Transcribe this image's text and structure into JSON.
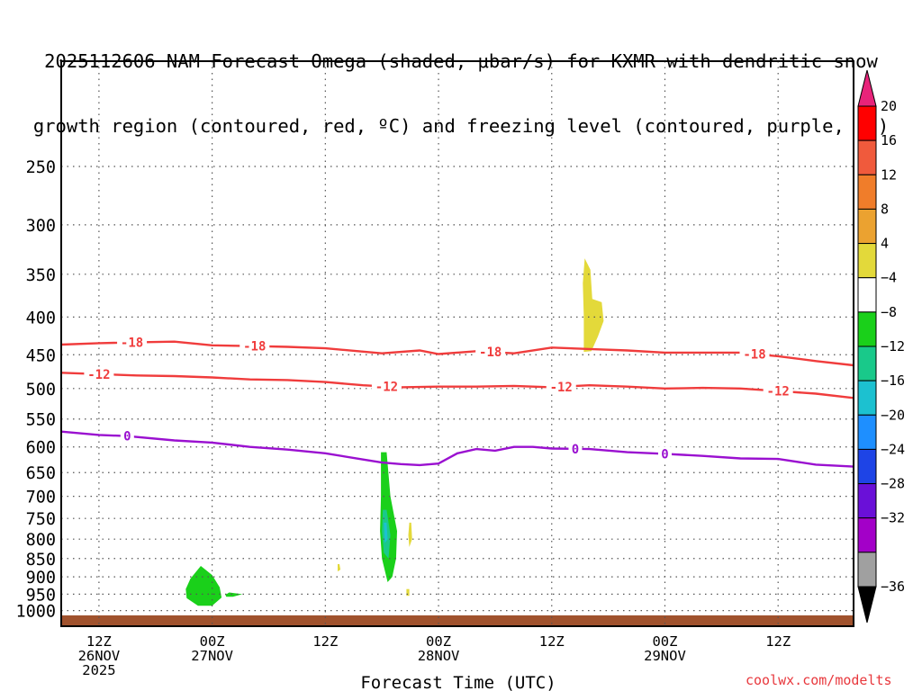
{
  "chart_data": {
    "type": "contour",
    "title_line1": "2025112606 NAM Forecast Omega (shaded, μbar/s) for KXMR with dendritic snow",
    "title_line2": "growth region (contoured, red, ºC) and freezing level (contoured, purple, ºC)",
    "xlabel": "Forecast Time (UTC)",
    "credit": "coolwx.com/modelts",
    "y_axis": {
      "scale": "log-pressure",
      "range": [
        1050,
        180
      ],
      "ticks": [
        250,
        300,
        350,
        400,
        450,
        500,
        550,
        600,
        650,
        700,
        750,
        800,
        850,
        900,
        950,
        1000
      ],
      "tick_labels": [
        "250",
        "300",
        "350",
        "400",
        "450",
        "500",
        "550",
        "600",
        "650",
        "700",
        "750",
        "800",
        "850",
        "900",
        "950",
        "1000"
      ]
    },
    "x_axis": {
      "range_hours": [
        -10,
        74
      ],
      "ticks_hours": [
        6,
        18,
        30,
        42,
        54,
        66
      ],
      "tick_labels": [
        [
          "12Z",
          "26NOV",
          "2025"
        ],
        [
          "00Z",
          "27NOV"
        ],
        [
          "12Z",
          ""
        ],
        [
          "00Z",
          "28NOV"
        ],
        [
          "12Z",
          ""
        ],
        [
          "00Z",
          "29NOV"
        ],
        [
          "12Z",
          ""
        ]
      ],
      "tick_hours_all": [
        -6,
        6,
        18,
        30,
        42,
        54,
        66
      ]
    },
    "grid": true,
    "colorbar": {
      "labels": [
        "20",
        "16",
        "12",
        "8",
        "4",
        "−4",
        "−8",
        "−12",
        "−16",
        "−20",
        "−24",
        "−28",
        "−32",
        "−36"
      ],
      "colors": [
        "#ff0000",
        "#f05a3c",
        "#f07d2a",
        "#eba230",
        "#e3d93a",
        "#ffffff",
        "#1ad01a",
        "#19c98a",
        "#1cc1d0",
        "#1e8fff",
        "#1e44e6",
        "#6a10d8",
        "#a300c8",
        "#a0a0a0"
      ],
      "top_arrow_color": "#e8237a",
      "bottom_arrow_color": "#000000"
    },
    "series": [
      {
        "name": "-18",
        "color": "#f03c3c",
        "label_hours": [
          -2.5,
          10.5,
          35.5,
          63.5
        ],
        "points": [
          [
            -10,
            436
          ],
          [
            -6,
            434
          ],
          [
            -2.5,
            433
          ],
          [
            2,
            432
          ],
          [
            6,
            437
          ],
          [
            10.5,
            438
          ],
          [
            14,
            439
          ],
          [
            18,
            441
          ],
          [
            24,
            448
          ],
          [
            28,
            444
          ],
          [
            30,
            449
          ],
          [
            34,
            445
          ],
          [
            38,
            448
          ],
          [
            42,
            440
          ],
          [
            46,
            442
          ],
          [
            50,
            444
          ],
          [
            54,
            447
          ],
          [
            58,
            447
          ],
          [
            62,
            447
          ],
          [
            66,
            452
          ],
          [
            70,
            459
          ],
          [
            74,
            465
          ]
        ]
      },
      {
        "name": "-12",
        "color": "#f03c3c",
        "label_hours": [
          -6,
          24.5,
          43,
          66
        ],
        "points": [
          [
            -10,
            476
          ],
          [
            -6,
            478
          ],
          [
            -2,
            480
          ],
          [
            2,
            481
          ],
          [
            6,
            483
          ],
          [
            10,
            486
          ],
          [
            14,
            487
          ],
          [
            18,
            490
          ],
          [
            22,
            495
          ],
          [
            26,
            498
          ],
          [
            30,
            497
          ],
          [
            34,
            497
          ],
          [
            38,
            496
          ],
          [
            42,
            498
          ],
          [
            46,
            495
          ],
          [
            50,
            497
          ],
          [
            54,
            500
          ],
          [
            58,
            499
          ],
          [
            62,
            500
          ],
          [
            66,
            504
          ],
          [
            70,
            508
          ],
          [
            74,
            515
          ]
        ]
      },
      {
        "name": "0",
        "color": "#9a10d0",
        "label_hours": [
          -3,
          44.5,
          54
        ],
        "points": [
          [
            -10,
            572
          ],
          [
            -6,
            578
          ],
          [
            -3,
            580
          ],
          [
            2,
            588
          ],
          [
            6,
            592
          ],
          [
            10,
            600
          ],
          [
            14,
            605
          ],
          [
            18,
            612
          ],
          [
            22,
            624
          ],
          [
            24,
            630
          ],
          [
            26,
            633
          ],
          [
            28,
            635
          ],
          [
            30,
            632
          ],
          [
            32,
            612
          ],
          [
            34,
            604
          ],
          [
            36,
            607
          ],
          [
            38,
            600
          ],
          [
            40,
            600
          ],
          [
            42,
            603
          ],
          [
            46,
            604
          ],
          [
            50,
            610
          ],
          [
            54,
            613
          ],
          [
            58,
            617
          ],
          [
            62,
            622
          ],
          [
            66,
            623
          ],
          [
            70,
            634
          ],
          [
            74,
            638
          ]
        ]
      }
    ],
    "omega_regions": [
      {
        "name": "-8",
        "color": "#1ad01a",
        "points": [
          [
            3.3,
            962
          ],
          [
            4.5,
            985
          ],
          [
            6,
            985
          ],
          [
            7.0,
            960
          ],
          [
            6.8,
            930
          ],
          [
            6.0,
            895
          ],
          [
            4.8,
            870
          ],
          [
            3.7,
            905
          ],
          [
            3.2,
            935
          ]
        ]
      },
      {
        "name": "-8",
        "color": "#1ad01a",
        "points": [
          [
            7.5,
            958
          ],
          [
            8.2,
            958
          ],
          [
            9.2,
            950
          ],
          [
            7.8,
            945
          ],
          [
            7.4,
            952
          ]
        ]
      },
      {
        "name": "-8",
        "color": "#1ad01a",
        "points": [
          [
            23.9,
            610
          ],
          [
            24.5,
            610
          ],
          [
            24.9,
            700
          ],
          [
            25.6,
            780
          ],
          [
            25.5,
            850
          ],
          [
            25.1,
            900
          ],
          [
            24.6,
            915
          ],
          [
            24.0,
            850
          ],
          [
            23.8,
            780
          ],
          [
            23.9,
            700
          ]
        ]
      },
      {
        "name": "-12",
        "color": "#19c98a",
        "points": [
          [
            24.1,
            730
          ],
          [
            24.5,
            730
          ],
          [
            24.9,
            790
          ],
          [
            24.7,
            850
          ],
          [
            24.2,
            835
          ],
          [
            24.0,
            780
          ]
        ]
      },
      {
        "name": "-16",
        "color": "#1cc1d0",
        "points": [
          [
            24.2,
            760
          ],
          [
            24.5,
            760
          ],
          [
            24.6,
            800
          ],
          [
            24.3,
            810
          ]
        ]
      },
      {
        "name": "4",
        "color": "#e3d93a",
        "points": [
          [
            45.5,
            333
          ],
          [
            46.1,
            345
          ],
          [
            46.3,
            378
          ],
          [
            47.3,
            382
          ],
          [
            47.5,
            405
          ],
          [
            46.9,
            425
          ],
          [
            46.2,
            445
          ],
          [
            45.4,
            446
          ],
          [
            45.4,
            400
          ],
          [
            45.3,
            360
          ]
        ]
      },
      {
        "name": "4",
        "color": "#e3d93a",
        "points": [
          [
            26.9,
            760
          ],
          [
            27.1,
            760
          ],
          [
            27.2,
            800
          ],
          [
            26.9,
            820
          ],
          [
            26.8,
            790
          ]
        ]
      },
      {
        "name": "4",
        "color": "#e3d93a",
        "points": [
          [
            19.3,
            865
          ],
          [
            19.5,
            865
          ],
          [
            19.6,
            880
          ],
          [
            19.3,
            885
          ]
        ]
      },
      {
        "name": "4",
        "color": "#e3d93a",
        "points": [
          [
            26.6,
            935
          ],
          [
            26.9,
            935
          ],
          [
            26.9,
            955
          ],
          [
            26.6,
            955
          ]
        ]
      }
    ],
    "ground": {
      "color": "#a0522d",
      "pressure": 1015
    }
  }
}
